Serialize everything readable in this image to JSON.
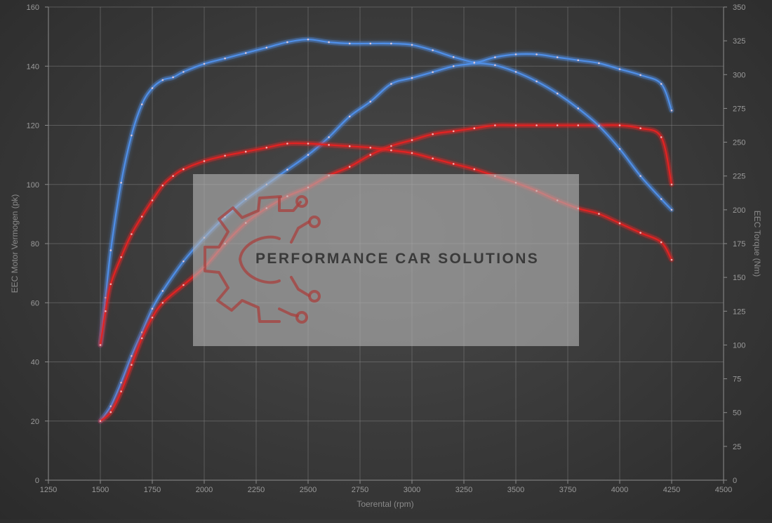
{
  "chart_data": {
    "type": "line",
    "xlabel": "Toerental (rpm)",
    "ylabel_left": "EEC Motor Vermogen (pk)",
    "ylabel_right": "EEC Torque (Nm)",
    "xlim": [
      1250,
      4500
    ],
    "ylim_left": [
      0,
      160
    ],
    "ylim_right": [
      0,
      350
    ],
    "x_ticks": [
      "1250",
      "1500",
      "1750",
      "2000",
      "2250",
      "2500",
      "2750",
      "3000",
      "3250",
      "3500",
      "3750",
      "4000",
      "4250",
      "4500"
    ],
    "y_left_ticks": [
      "0",
      "20",
      "40",
      "60",
      "80",
      "100",
      "120",
      "140",
      "160"
    ],
    "y_right_ticks": [
      "0",
      "25",
      "50",
      "75",
      "100",
      "125",
      "150",
      "175",
      "200",
      "225",
      "250",
      "275",
      "300",
      "325",
      "350"
    ],
    "grid": true,
    "series": [
      {
        "axis": "left",
        "color": "#4f8fe8",
        "x": [
          1500,
          1550,
          1600,
          1650,
          1700,
          1750,
          1800,
          1900,
          2000,
          2100,
          2200,
          2300,
          2400,
          2500,
          2600,
          2700,
          2800,
          2900,
          3000,
          3100,
          3200,
          3300,
          3400,
          3500,
          3600,
          3700,
          3800,
          3900,
          4000,
          4100,
          4200,
          4250
        ],
        "y": [
          20,
          25,
          33,
          42,
          50,
          58,
          64,
          74,
          82,
          89,
          95,
          100,
          105,
          110,
          116,
          123,
          128,
          134,
          136,
          138,
          140,
          141,
          143,
          144,
          144,
          143,
          142,
          141,
          139,
          137,
          134,
          125
        ]
      },
      {
        "axis": "left",
        "color": "#e32222",
        "x": [
          1500,
          1550,
          1600,
          1650,
          1700,
          1750,
          1800,
          1900,
          2000,
          2100,
          2200,
          2300,
          2400,
          2500,
          2600,
          2700,
          2800,
          2900,
          3000,
          3100,
          3200,
          3300,
          3400,
          3500,
          3600,
          3700,
          3800,
          3900,
          4000,
          4100,
          4200,
          4250
        ],
        "y": [
          20,
          23,
          30,
          39,
          48,
          55,
          60,
          66,
          72,
          80,
          87,
          92,
          96,
          99,
          103,
          106,
          110,
          113,
          115,
          117,
          118,
          119,
          120,
          120,
          120,
          120,
          120,
          120,
          120,
          119,
          116,
          100
        ]
      },
      {
        "axis": "right",
        "color": "#4f8fe8",
        "x": [
          1500,
          1525,
          1550,
          1600,
          1650,
          1700,
          1750,
          1800,
          1850,
          1900,
          2000,
          2100,
          2200,
          2300,
          2400,
          2500,
          2600,
          2700,
          2800,
          2900,
          3000,
          3100,
          3200,
          3300,
          3400,
          3500,
          3600,
          3700,
          3800,
          3900,
          4000,
          4100,
          4200,
          4250
        ],
        "y": [
          100,
          135,
          170,
          220,
          255,
          278,
          290,
          296,
          298,
          302,
          308,
          312,
          316,
          320,
          324,
          326,
          324,
          323,
          323,
          323,
          322,
          318,
          313,
          309,
          307,
          302,
          295,
          286,
          275,
          262,
          245,
          225,
          208,
          200
        ]
      },
      {
        "axis": "right",
        "color": "#e32222",
        "x": [
          1500,
          1525,
          1550,
          1600,
          1650,
          1700,
          1750,
          1800,
          1850,
          1900,
          2000,
          2100,
          2200,
          2300,
          2400,
          2500,
          2600,
          2700,
          2800,
          2900,
          3000,
          3100,
          3200,
          3300,
          3400,
          3500,
          3600,
          3700,
          3800,
          3900,
          4000,
          4100,
          4200,
          4250
        ],
        "y": [
          100,
          125,
          145,
          165,
          182,
          195,
          207,
          218,
          225,
          230,
          236,
          240,
          243,
          246,
          249,
          249,
          248,
          247,
          246,
          244,
          242,
          238,
          234,
          230,
          225,
          220,
          214,
          207,
          201,
          197,
          190,
          183,
          176,
          163
        ]
      }
    ]
  },
  "watermark": {
    "text": "PERFORMANCE CAR SOLUTIONS",
    "icon": "gear-circuit-icon",
    "box_color": "#b4b4b4",
    "icon_color": "#a8403e"
  }
}
